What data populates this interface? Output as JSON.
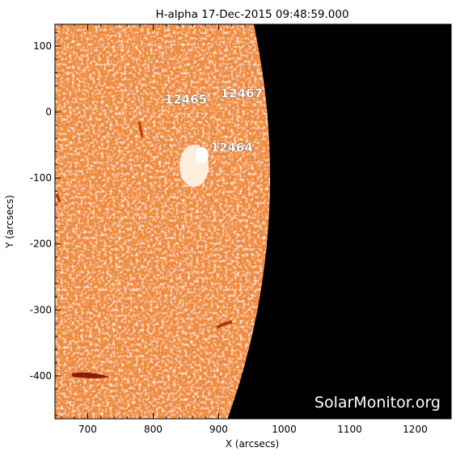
{
  "title": "H-alpha 17-Dec-2015 09:48:59.000",
  "xlabel": "X (arcsecs)",
  "ylabel": "Y (arcsecs)",
  "x_ticks": [
    "700",
    "800",
    "900",
    "1000",
    "1100",
    "1200"
  ],
  "y_ticks": [
    "100",
    "0",
    "-100",
    "-200",
    "-300",
    "-400"
  ],
  "x_range": [
    650,
    1255
  ],
  "y_range": [
    -465,
    133
  ],
  "regions": [
    {
      "label": "12465",
      "x": 850,
      "y": 13
    },
    {
      "label": "12467",
      "x": 935,
      "y": 22
    },
    {
      "label": "12464",
      "x": 920,
      "y": -60
    }
  ],
  "watermark": "SolarMonitor.org",
  "colors": {
    "disk_base": "#f08a3a",
    "disk_dark": "#cf5a10",
    "plage": "#fff2dc",
    "space": "#000000",
    "grid": "#ffffff"
  }
}
